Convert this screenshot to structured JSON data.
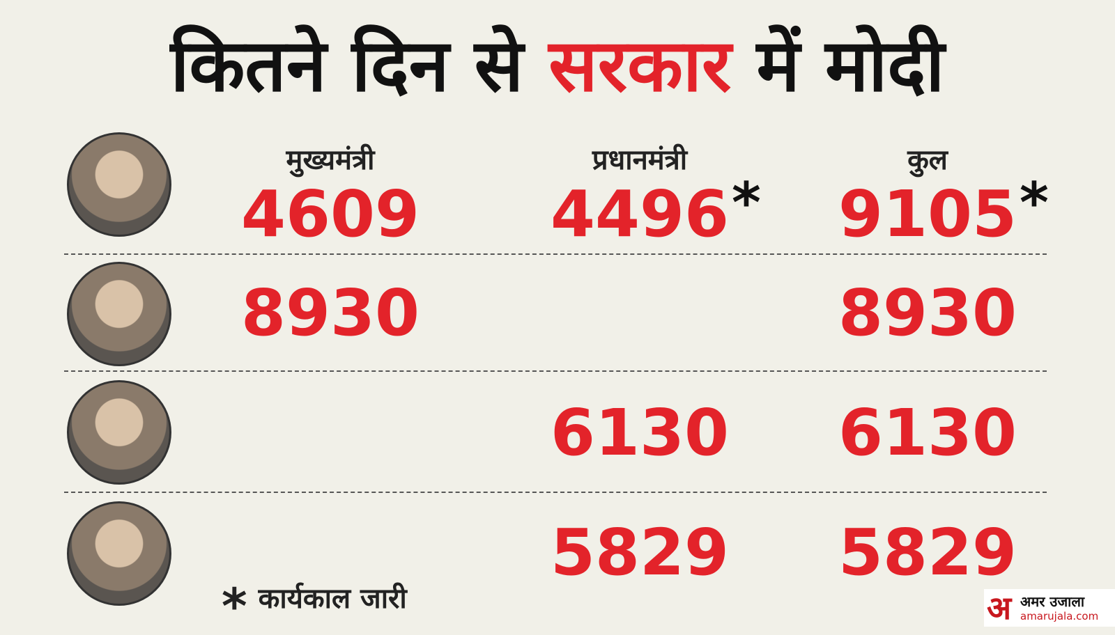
{
  "header": {
    "title": {
      "part1": "कितने दिन से",
      "highlight": "सरकार",
      "part2": "में मोदी"
    }
  },
  "table": {
    "columns": [
      "मुख्यमंत्री",
      "प्रधानमंत्री",
      "कुल"
    ],
    "rows": [
      {
        "cells": [
          {
            "text": "4609",
            "note": null
          },
          {
            "text": "4496",
            "note": "*"
          },
          {
            "text": "9105",
            "note": "*"
          }
        ]
      },
      {
        "cells": [
          {
            "text": "8930",
            "note": null
          },
          null,
          {
            "text": "8930",
            "note": null
          }
        ]
      },
      {
        "cells": [
          null,
          {
            "text": "6130",
            "note": null
          },
          {
            "text": "6130",
            "note": null
          }
        ]
      },
      {
        "cells": [
          null,
          {
            "text": "5829",
            "note": null
          },
          {
            "text": "5829",
            "note": null
          }
        ]
      }
    ]
  },
  "footnote": {
    "symbol": "*",
    "text": "कार्यकाल जारी"
  },
  "logo": {
    "mark": "अ",
    "name": "अमर उजाला",
    "url": "amarujala.com"
  }
}
